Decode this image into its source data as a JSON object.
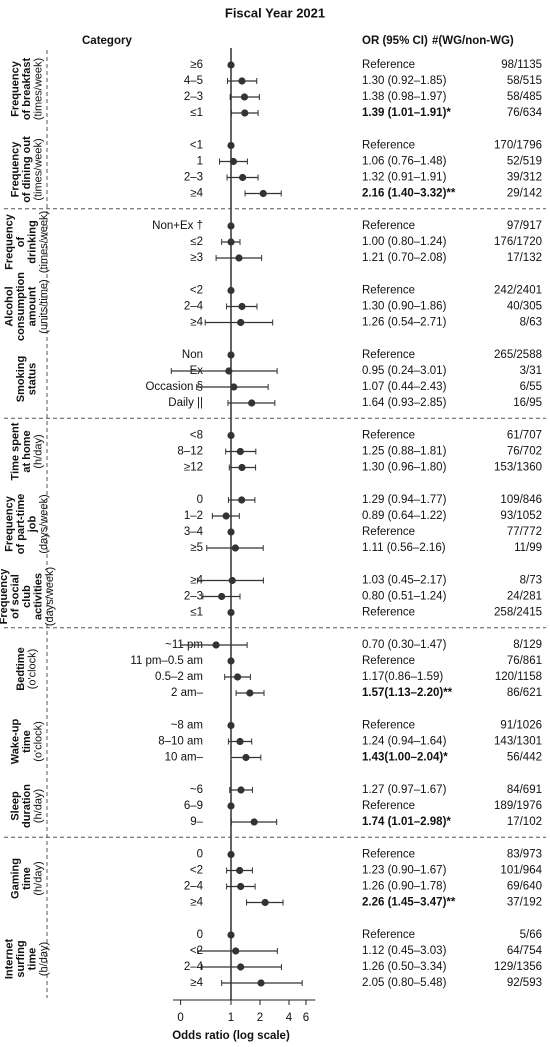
{
  "chart_data": {
    "type": "forest",
    "title": "Fiscal Year 2021",
    "headers": {
      "category": "Category",
      "or": "OR (95% CI)",
      "count": "#(WG/non-WG)"
    },
    "xlabel": "Odds ratio (log scale)",
    "log_scale": true,
    "xlim": [
      0.25,
      7.5
    ],
    "xticks": [
      {
        "value": 0.3,
        "label": "0"
      },
      1,
      2,
      4,
      6
    ],
    "color": "#333333",
    "sections": [
      {
        "groups": [
          {
            "lines": [
              "Frequency",
              "of breakfast"
            ],
            "unit": "(times/week)",
            "rows": [
              {
                "category": "≥6",
                "or": 1,
                "lo": null,
                "hi": null,
                "or_label": "Reference",
                "count": "98/1135"
              },
              {
                "category": "4–5",
                "or": 1.3,
                "lo": 0.92,
                "hi": 1.85,
                "or_label": "1.30 (0.92–1.85)",
                "count": "58/515"
              },
              {
                "category": "2–3",
                "or": 1.38,
                "lo": 0.98,
                "hi": 1.97,
                "or_label": "1.38 (0.98–1.97)",
                "count": "58/485"
              },
              {
                "category": "≤1",
                "or": 1.39,
                "lo": 1.01,
                "hi": 1.91,
                "or_label": "1.39 (1.01–1.91)*",
                "bold": true,
                "count": "76/634"
              }
            ]
          },
          {
            "lines": [
              "Frequency",
              "of dining out"
            ],
            "unit": "(times/week)",
            "rows": [
              {
                "category": "<1",
                "or": 1,
                "lo": null,
                "hi": null,
                "or_label": "Reference",
                "count": "170/1796"
              },
              {
                "category": "1",
                "or": 1.06,
                "lo": 0.76,
                "hi": 1.48,
                "or_label": "1.06 (0.76–1.48)",
                "count": "52/519"
              },
              {
                "category": "2–3",
                "or": 1.32,
                "lo": 0.91,
                "hi": 1.91,
                "or_label": "1.32 (0.91–1.91)",
                "count": "39/312"
              },
              {
                "category": "≥4",
                "or": 2.16,
                "lo": 1.4,
                "hi": 3.32,
                "or_label": "2.16 (1.40–3.32)**",
                "bold": true,
                "count": "29/142"
              }
            ]
          }
        ]
      },
      {
        "groups": [
          {
            "lines": [
              "Frequency",
              "of",
              "drinking"
            ],
            "unit": "(times/week)",
            "rows": [
              {
                "category": "Non+Ex †",
                "or": 1,
                "lo": null,
                "hi": null,
                "or_label": "Reference",
                "count": "97/917"
              },
              {
                "category": "≤2",
                "or": 1.0,
                "lo": 0.8,
                "hi": 1.24,
                "or_label": "1.00 (0.80–1.24)",
                "count": "176/1720"
              },
              {
                "category": "≥3",
                "or": 1.21,
                "lo": 0.7,
                "hi": 2.08,
                "or_label": "1.21 (0.70–2.08)",
                "count": "17/132"
              }
            ]
          },
          {
            "lines": [
              "Alcohol",
              "consumption",
              "amount"
            ],
            "unit": "(units/time)",
            "rows": [
              {
                "category": "<2",
                "or": 1,
                "lo": null,
                "hi": null,
                "or_label": "Reference",
                "count": "242/2401"
              },
              {
                "category": "2–4",
                "or": 1.3,
                "lo": 0.9,
                "hi": 1.86,
                "or_label": "1.30 (0.90–1.86)",
                "count": "40/305"
              },
              {
                "category": "≥4",
                "or": 1.26,
                "lo": 0.54,
                "hi": 2.71,
                "or_label": "1.26 (0.54–2.71)",
                "count": "8/63"
              }
            ]
          },
          {
            "lines": [
              "Smoking",
              "status"
            ],
            "rows": [
              {
                "category": "Non",
                "or": 1,
                "lo": null,
                "hi": null,
                "or_label": "Reference",
                "count": "265/2588"
              },
              {
                "category": "Ex",
                "or": 0.95,
                "lo": 0.24,
                "hi": 3.01,
                "or_label": "0.95 (0.24–3.01)",
                "count": "3/31"
              },
              {
                "category": "Occasion §",
                "or": 1.07,
                "lo": 0.44,
                "hi": 2.43,
                "or_label": "1.07 (0.44–2.43)",
                "count": "6/55"
              },
              {
                "category": "Daily ||",
                "or": 1.64,
                "lo": 0.93,
                "hi": 2.85,
                "or_label": "1.64 (0.93–2.85)",
                "count": "16/95"
              }
            ]
          }
        ]
      },
      {
        "groups": [
          {
            "lines": [
              "Time spent",
              "at home"
            ],
            "unit": "(h/day)",
            "rows": [
              {
                "category": "<8",
                "or": 1,
                "lo": null,
                "hi": null,
                "or_label": "Reference",
                "count": "61/707"
              },
              {
                "category": "8–12",
                "or": 1.25,
                "lo": 0.88,
                "hi": 1.81,
                "or_label": "1.25 (0.88–1.81)",
                "count": "76/702"
              },
              {
                "category": "≥12",
                "or": 1.3,
                "lo": 0.96,
                "hi": 1.8,
                "or_label": "1.30 (0.96–1.80)",
                "count": "153/1360"
              }
            ]
          },
          {
            "lines": [
              "Frequency",
              "of part-time",
              "job"
            ],
            "unit": "(days/week)",
            "rows": [
              {
                "category": "0",
                "or": 1.29,
                "lo": 0.94,
                "hi": 1.77,
                "or_label": "1.29 (0.94–1.77)",
                "count": "109/846"
              },
              {
                "category": "1–2",
                "or": 0.89,
                "lo": 0.64,
                "hi": 1.22,
                "or_label": "0.89 (0.64–1.22)",
                "count": "93/1052"
              },
              {
                "category": "3–4",
                "or": 1,
                "lo": null,
                "hi": null,
                "or_label": "Reference",
                "count": "77/772"
              },
              {
                "category": "≥5",
                "or": 1.11,
                "lo": 0.56,
                "hi": 2.16,
                "or_label": "1.11 (0.56–2.16)",
                "count": "11/99"
              }
            ]
          },
          {
            "lines": [
              "Frequency",
              "of social",
              "club",
              "activities"
            ],
            "unit": "(days/week)",
            "rows": [
              {
                "category": "≥4",
                "or": 1.03,
                "lo": 0.45,
                "hi": 2.17,
                "or_label": "1.03 (0.45–2.17)",
                "count": "8/73"
              },
              {
                "category": "2–3",
                "or": 0.8,
                "lo": 0.51,
                "hi": 1.24,
                "or_label": "0.80 (0.51–1.24)",
                "count": "24/281"
              },
              {
                "category": "≤1",
                "or": 1,
                "lo": null,
                "hi": null,
                "or_label": "Reference",
                "count": "258/2415"
              }
            ]
          }
        ]
      },
      {
        "groups": [
          {
            "lines": [
              "Bedtime"
            ],
            "unit": "(o'clock)",
            "rows": [
              {
                "category": "~11 pm",
                "or": 0.7,
                "lo": 0.3,
                "hi": 1.47,
                "or_label": "0.70 (0.30–1.47)",
                "count": "8/129"
              },
              {
                "category": "11 pm–0.5 am",
                "or": 1,
                "lo": null,
                "hi": null,
                "or_label": "Reference",
                "count": "76/861"
              },
              {
                "category": "0.5–2 am",
                "or": 1.17,
                "lo": 0.86,
                "hi": 1.59,
                "or_label": "1.17(0.86–1.59)",
                "count": "120/1158"
              },
              {
                "category": "2 am–",
                "or": 1.57,
                "lo": 1.13,
                "hi": 2.2,
                "or_label": "1.57(1.13–2.20)**",
                "bold": true,
                "count": "86/621"
              }
            ]
          },
          {
            "lines": [
              "Wake-up",
              "time"
            ],
            "unit": "(o'clock)",
            "rows": [
              {
                "category": "~8 am",
                "or": 1,
                "lo": null,
                "hi": null,
                "or_label": "Reference",
                "count": "91/1026"
              },
              {
                "category": "8–10 am",
                "or": 1.24,
                "lo": 0.94,
                "hi": 1.64,
                "or_label": "1.24 (0.94–1.64)",
                "count": "143/1301"
              },
              {
                "category": "10 am–",
                "or": 1.43,
                "lo": 1.0,
                "hi": 2.04,
                "or_label": "1.43(1.00–2.04)*",
                "bold": true,
                "count": "56/442"
              }
            ]
          },
          {
            "lines": [
              "Sleep",
              "duration"
            ],
            "unit": "(h/day)",
            "rows": [
              {
                "category": "~6",
                "or": 1.27,
                "lo": 0.97,
                "hi": 1.67,
                "or_label": "1.27 (0.97–1.67)",
                "count": "84/691"
              },
              {
                "category": "6–9",
                "or": 1,
                "lo": null,
                "hi": null,
                "or_label": "Reference",
                "count": "189/1976"
              },
              {
                "category": "9–",
                "or": 1.74,
                "lo": 1.01,
                "hi": 2.98,
                "or_label": "1.74 (1.01–2.98)*",
                "bold": true,
                "count": "17/102"
              }
            ]
          }
        ]
      },
      {
        "groups": [
          {
            "lines": [
              "Gaming",
              "time"
            ],
            "unit": "(h/day)",
            "rows": [
              {
                "category": "0",
                "or": 1,
                "lo": null,
                "hi": null,
                "or_label": "Reference",
                "count": "83/973"
              },
              {
                "category": "<2",
                "or": 1.23,
                "lo": 0.9,
                "hi": 1.67,
                "or_label": "1.23 (0.90–1.67)",
                "count": "101/964"
              },
              {
                "category": "2–4",
                "or": 1.26,
                "lo": 0.9,
                "hi": 1.78,
                "or_label": "1.26 (0.90–1.78)",
                "count": "69/640"
              },
              {
                "category": "≥4",
                "or": 2.26,
                "lo": 1.45,
                "hi": 3.47,
                "or_label": "2.26 (1.45–3.47)**",
                "bold": true,
                "count": "37/192"
              }
            ]
          },
          {
            "lines": [
              "Internet",
              "surfing",
              "time"
            ],
            "unit": "(h/day)",
            "rows": [
              {
                "category": "0",
                "or": 1,
                "lo": null,
                "hi": null,
                "or_label": "Reference",
                "count": "5/66"
              },
              {
                "category": "<2",
                "or": 1.12,
                "lo": 0.45,
                "hi": 3.03,
                "or_label": "1.12 (0.45–3.03)",
                "count": "64/754"
              },
              {
                "category": "2–4",
                "or": 1.26,
                "lo": 0.5,
                "hi": 3.34,
                "or_label": "1.26 (0.50–3.34)",
                "count": "129/1356"
              },
              {
                "category": "≥4",
                "or": 2.05,
                "lo": 0.8,
                "hi": 5.48,
                "or_label": "2.05 (0.80–5.48)",
                "count": "92/593"
              }
            ]
          }
        ]
      }
    ]
  }
}
